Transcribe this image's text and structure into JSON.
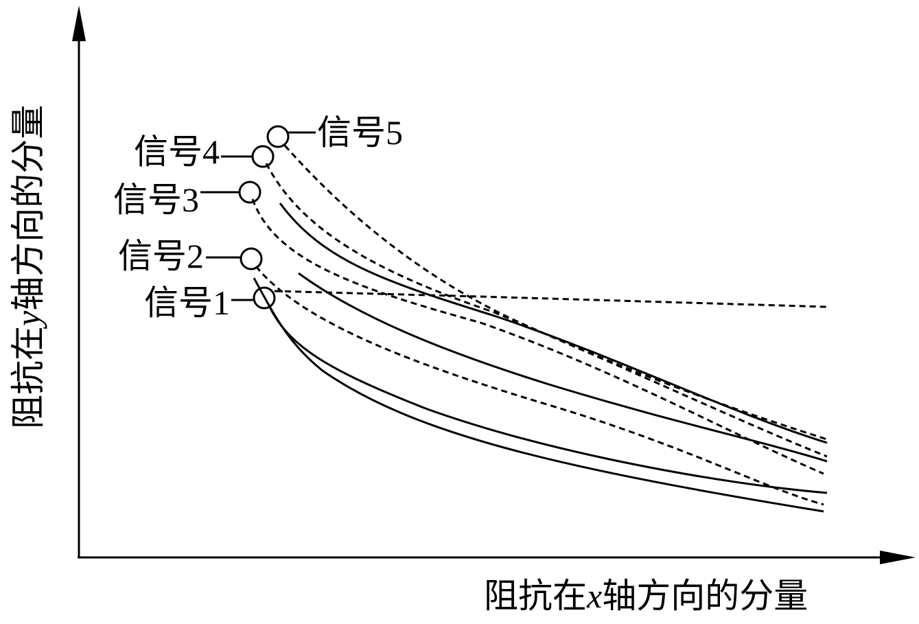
{
  "axes": {
    "x_label": [
      "阻抗在",
      "x",
      "轴方向的分量"
    ],
    "y_label": [
      "阻抗在",
      "y",
      "轴方向的分量"
    ]
  },
  "signals": [
    {
      "label": "信号1"
    },
    {
      "label": "信号2"
    },
    {
      "label": "信号3"
    },
    {
      "label": "信号4"
    },
    {
      "label": "信号5"
    }
  ]
}
